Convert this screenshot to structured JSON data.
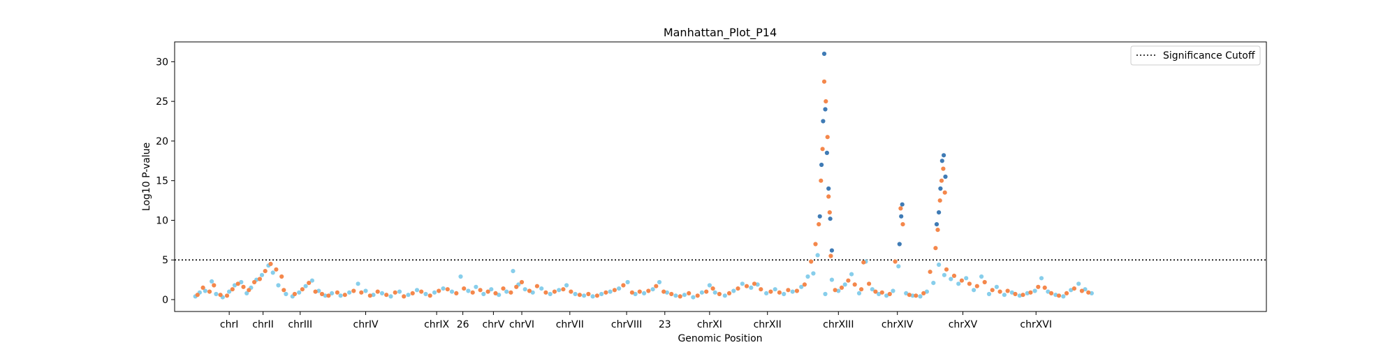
{
  "chart_data": {
    "type": "scatter",
    "title": "Manhattan_Plot_P14",
    "xlabel": "Genomic Position",
    "ylabel": "Log10 P-value",
    "xlim": [
      0,
      100
    ],
    "ylim": [
      -1.5,
      32.5
    ],
    "yticks": [
      0,
      5,
      10,
      15,
      20,
      25,
      30
    ],
    "grid": false,
    "legend": {
      "position": "top-right",
      "entries": [
        "Significance Cutoff"
      ]
    },
    "threshold": {
      "y": 5,
      "label": "Significance Cutoff",
      "style": "dotted",
      "color": "#000000"
    },
    "colors": {
      "sky": "#87ceeb",
      "orange": "#f4874b",
      "steel": "#3f7bb5"
    },
    "chromosomes": [
      {
        "label": "chrI",
        "x": 5.0
      },
      {
        "label": "chrII",
        "x": 8.1
      },
      {
        "label": "chrIII",
        "x": 11.5
      },
      {
        "label": "chrIV",
        "x": 17.5
      },
      {
        "label": "chrIX",
        "x": 24.0
      },
      {
        "label": "26",
        "x": 26.4
      },
      {
        "label": "chrV",
        "x": 29.2
      },
      {
        "label": "chrVI",
        "x": 31.8
      },
      {
        "label": "chrVII",
        "x": 36.2
      },
      {
        "label": "chrVIII",
        "x": 41.4
      },
      {
        "label": "23",
        "x": 44.9
      },
      {
        "label": "chrXI",
        "x": 49.0
      },
      {
        "label": "chrXII",
        "x": 54.3
      },
      {
        "label": "chrXIII",
        "x": 60.8
      },
      {
        "label": "chrXIV",
        "x": 66.2
      },
      {
        "label": "chrXV",
        "x": 72.2
      },
      {
        "label": "chrXVI",
        "x": 78.9
      }
    ],
    "series": [
      {
        "color": "sky",
        "points": [
          [
            1.9,
            0.4
          ],
          [
            2.3,
            0.9
          ],
          [
            2.8,
            1.1
          ],
          [
            3.4,
            2.3
          ],
          [
            3.8,
            0.7
          ],
          [
            4.4,
            0.3
          ],
          [
            5.0,
            1.0
          ],
          [
            5.5,
            1.8
          ],
          [
            6.1,
            2.2
          ],
          [
            6.6,
            0.8
          ],
          [
            7.0,
            1.5
          ],
          [
            7.5,
            2.5
          ],
          [
            8.0,
            3.1
          ],
          [
            8.6,
            4.3
          ],
          [
            9.0,
            3.4
          ],
          [
            9.5,
            1.8
          ],
          [
            10.2,
            0.7
          ],
          [
            10.8,
            0.4
          ],
          [
            11.4,
            0.9
          ],
          [
            12.0,
            1.7
          ],
          [
            12.6,
            2.4
          ],
          [
            13.2,
            1.1
          ],
          [
            13.8,
            0.5
          ],
          [
            14.4,
            0.8
          ],
          [
            15.2,
            0.5
          ],
          [
            16.0,
            0.9
          ],
          [
            16.8,
            2.0
          ],
          [
            17.5,
            1.1
          ],
          [
            18.2,
            0.6
          ],
          [
            19.0,
            0.8
          ],
          [
            19.8,
            0.4
          ],
          [
            20.6,
            1.0
          ],
          [
            21.4,
            0.6
          ],
          [
            22.2,
            1.2
          ],
          [
            23.0,
            0.7
          ],
          [
            23.8,
            0.9
          ],
          [
            24.6,
            1.4
          ],
          [
            25.4,
            1.0
          ],
          [
            26.2,
            2.9
          ],
          [
            26.9,
            1.1
          ],
          [
            27.6,
            1.6
          ],
          [
            28.3,
            0.7
          ],
          [
            29.0,
            1.3
          ],
          [
            29.7,
            0.6
          ],
          [
            30.4,
            1.0
          ],
          [
            31.0,
            3.6
          ],
          [
            31.5,
            1.9
          ],
          [
            32.1,
            1.3
          ],
          [
            32.8,
            0.9
          ],
          [
            33.6,
            1.4
          ],
          [
            34.4,
            0.7
          ],
          [
            35.2,
            1.2
          ],
          [
            35.9,
            1.8
          ],
          [
            36.7,
            0.7
          ],
          [
            37.5,
            0.5
          ],
          [
            38.3,
            0.4
          ],
          [
            39.1,
            0.7
          ],
          [
            39.9,
            1.0
          ],
          [
            40.7,
            1.4
          ],
          [
            41.5,
            2.2
          ],
          [
            42.2,
            0.7
          ],
          [
            43.0,
            0.8
          ],
          [
            43.8,
            1.3
          ],
          [
            44.4,
            2.2
          ],
          [
            45.1,
            0.9
          ],
          [
            45.9,
            0.5
          ],
          [
            46.7,
            0.6
          ],
          [
            47.5,
            0.3
          ],
          [
            48.3,
            0.9
          ],
          [
            49.0,
            1.8
          ],
          [
            49.5,
            0.9
          ],
          [
            50.4,
            0.5
          ],
          [
            51.2,
            1.1
          ],
          [
            52.0,
            2.0
          ],
          [
            52.8,
            1.5
          ],
          [
            53.4,
            1.9
          ],
          [
            54.2,
            0.8
          ],
          [
            55.0,
            1.3
          ],
          [
            55.8,
            0.7
          ],
          [
            56.6,
            1.0
          ],
          [
            57.4,
            1.6
          ],
          [
            58.0,
            2.9
          ],
          [
            58.5,
            3.3
          ],
          [
            58.9,
            5.6
          ],
          [
            59.6,
            0.7
          ],
          [
            60.2,
            2.5
          ],
          [
            60.8,
            1.1
          ],
          [
            61.4,
            1.9
          ],
          [
            62.0,
            3.2
          ],
          [
            62.7,
            0.8
          ],
          [
            63.3,
            4.8
          ],
          [
            63.9,
            1.3
          ],
          [
            64.5,
            0.7
          ],
          [
            65.2,
            0.5
          ],
          [
            65.8,
            1.1
          ],
          [
            66.3,
            4.2
          ],
          [
            67.0,
            0.8
          ],
          [
            67.6,
            0.5
          ],
          [
            68.3,
            0.4
          ],
          [
            68.9,
            1.0
          ],
          [
            69.5,
            2.1
          ],
          [
            70.0,
            4.4
          ],
          [
            70.5,
            3.1
          ],
          [
            71.1,
            2.6
          ],
          [
            71.8,
            2.0
          ],
          [
            72.5,
            2.7
          ],
          [
            73.2,
            1.2
          ],
          [
            73.9,
            2.9
          ],
          [
            74.6,
            0.7
          ],
          [
            75.3,
            1.6
          ],
          [
            76.0,
            0.6
          ],
          [
            76.7,
            0.9
          ],
          [
            77.4,
            0.5
          ],
          [
            78.1,
            0.8
          ],
          [
            78.8,
            1.1
          ],
          [
            79.4,
            2.7
          ],
          [
            80.0,
            1.0
          ],
          [
            80.7,
            0.6
          ],
          [
            81.4,
            0.4
          ],
          [
            82.1,
            1.2
          ],
          [
            82.8,
            2.0
          ],
          [
            83.4,
            1.3
          ],
          [
            84.0,
            0.8
          ]
        ]
      },
      {
        "color": "orange",
        "points": [
          [
            2.1,
            0.6
          ],
          [
            2.6,
            1.5
          ],
          [
            3.2,
            1.0
          ],
          [
            3.6,
            1.8
          ],
          [
            4.2,
            0.6
          ],
          [
            4.8,
            0.5
          ],
          [
            5.3,
            1.3
          ],
          [
            5.8,
            2.0
          ],
          [
            6.3,
            1.6
          ],
          [
            6.8,
            1.2
          ],
          [
            7.3,
            2.2
          ],
          [
            7.8,
            2.6
          ],
          [
            8.3,
            3.6
          ],
          [
            8.8,
            4.5
          ],
          [
            9.3,
            3.8
          ],
          [
            9.8,
            2.9
          ],
          [
            10.0,
            1.2
          ],
          [
            11.0,
            0.7
          ],
          [
            11.7,
            1.3
          ],
          [
            12.3,
            2.1
          ],
          [
            12.9,
            1.0
          ],
          [
            13.5,
            0.7
          ],
          [
            14.1,
            0.5
          ],
          [
            14.9,
            0.9
          ],
          [
            15.6,
            0.6
          ],
          [
            16.4,
            1.1
          ],
          [
            17.1,
            0.9
          ],
          [
            17.9,
            0.5
          ],
          [
            18.6,
            1.0
          ],
          [
            19.4,
            0.6
          ],
          [
            20.2,
            0.9
          ],
          [
            21.0,
            0.4
          ],
          [
            21.8,
            0.8
          ],
          [
            22.6,
            1.0
          ],
          [
            23.4,
            0.5
          ],
          [
            24.2,
            1.1
          ],
          [
            25.0,
            1.3
          ],
          [
            25.8,
            0.8
          ],
          [
            26.5,
            1.4
          ],
          [
            27.3,
            0.9
          ],
          [
            28.0,
            1.2
          ],
          [
            28.7,
            1.0
          ],
          [
            29.4,
            0.8
          ],
          [
            30.1,
            1.4
          ],
          [
            30.8,
            0.9
          ],
          [
            31.3,
            1.6
          ],
          [
            31.8,
            2.2
          ],
          [
            32.5,
            1.1
          ],
          [
            33.2,
            1.7
          ],
          [
            34.0,
            0.9
          ],
          [
            34.8,
            1.0
          ],
          [
            35.6,
            1.3
          ],
          [
            36.3,
            1.0
          ],
          [
            37.1,
            0.6
          ],
          [
            37.9,
            0.7
          ],
          [
            38.7,
            0.5
          ],
          [
            39.5,
            0.9
          ],
          [
            40.3,
            1.2
          ],
          [
            41.1,
            1.8
          ],
          [
            41.9,
            0.9
          ],
          [
            42.6,
            1.0
          ],
          [
            43.4,
            1.1
          ],
          [
            44.1,
            1.7
          ],
          [
            44.8,
            1.0
          ],
          [
            45.5,
            0.7
          ],
          [
            46.3,
            0.4
          ],
          [
            47.1,
            0.8
          ],
          [
            47.9,
            0.5
          ],
          [
            48.7,
            1.0
          ],
          [
            49.3,
            1.4
          ],
          [
            49.9,
            0.7
          ],
          [
            50.8,
            0.8
          ],
          [
            51.6,
            1.4
          ],
          [
            52.4,
            1.7
          ],
          [
            53.1,
            2.0
          ],
          [
            53.7,
            1.3
          ],
          [
            54.6,
            1.0
          ],
          [
            55.4,
            0.9
          ],
          [
            56.2,
            1.2
          ],
          [
            57.0,
            1.1
          ],
          [
            57.7,
            1.9
          ],
          [
            58.3,
            4.8
          ],
          [
            58.7,
            7.0
          ],
          [
            59.0,
            9.5
          ],
          [
            59.2,
            15.0
          ],
          [
            59.35,
            19.0
          ],
          [
            59.5,
            27.5
          ],
          [
            59.65,
            25.0
          ],
          [
            59.8,
            20.5
          ],
          [
            59.9,
            13.0
          ],
          [
            60.0,
            11.0
          ],
          [
            60.1,
            5.5
          ],
          [
            60.5,
            1.2
          ],
          [
            61.1,
            1.5
          ],
          [
            61.7,
            2.4
          ],
          [
            62.3,
            1.9
          ],
          [
            62.9,
            1.3
          ],
          [
            63.1,
            4.7
          ],
          [
            63.6,
            2.0
          ],
          [
            64.2,
            1.0
          ],
          [
            64.8,
            0.9
          ],
          [
            65.5,
            0.7
          ],
          [
            66.0,
            4.8
          ],
          [
            66.5,
            11.5
          ],
          [
            66.7,
            9.5
          ],
          [
            67.3,
            0.6
          ],
          [
            67.9,
            0.5
          ],
          [
            68.6,
            0.8
          ],
          [
            69.2,
            3.5
          ],
          [
            69.7,
            6.5
          ],
          [
            69.9,
            8.8
          ],
          [
            70.1,
            12.5
          ],
          [
            70.25,
            15.0
          ],
          [
            70.4,
            16.5
          ],
          [
            70.55,
            13.5
          ],
          [
            70.7,
            3.8
          ],
          [
            71.4,
            3.0
          ],
          [
            72.1,
            2.4
          ],
          [
            72.8,
            2.0
          ],
          [
            73.5,
            1.7
          ],
          [
            74.2,
            2.2
          ],
          [
            74.9,
            1.2
          ],
          [
            75.6,
            1.0
          ],
          [
            76.3,
            1.1
          ],
          [
            77.0,
            0.7
          ],
          [
            77.7,
            0.6
          ],
          [
            78.4,
            0.9
          ],
          [
            79.1,
            1.6
          ],
          [
            79.7,
            1.5
          ],
          [
            80.3,
            0.8
          ],
          [
            81.0,
            0.5
          ],
          [
            81.7,
            0.8
          ],
          [
            82.4,
            1.4
          ],
          [
            83.1,
            1.1
          ],
          [
            83.7,
            0.9
          ]
        ]
      },
      {
        "color": "steel",
        "points": [
          [
            59.1,
            10.5
          ],
          [
            59.25,
            17.0
          ],
          [
            59.4,
            22.5
          ],
          [
            59.5,
            31.0
          ],
          [
            59.6,
            24.0
          ],
          [
            59.75,
            18.5
          ],
          [
            59.9,
            14.0
          ],
          [
            60.05,
            10.2
          ],
          [
            60.2,
            6.2
          ],
          [
            66.4,
            7.0
          ],
          [
            66.55,
            10.5
          ],
          [
            66.65,
            12.0
          ],
          [
            69.8,
            9.5
          ],
          [
            70.0,
            11.0
          ],
          [
            70.15,
            14.0
          ],
          [
            70.3,
            17.5
          ],
          [
            70.45,
            18.2
          ],
          [
            70.6,
            15.5
          ]
        ]
      }
    ]
  }
}
